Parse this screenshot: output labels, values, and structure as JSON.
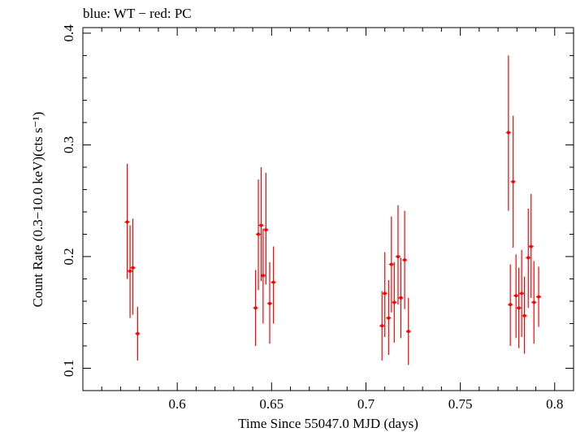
{
  "chart_data": {
    "type": "scatter",
    "title": "blue: WT − red: PC",
    "xlabel": "Time Since 55047.0 MJD (days)",
    "ylabel": "Count Rate (0.3−10.0 keV)(cts s⁻¹)",
    "xlim": [
      0.55,
      0.81
    ],
    "ylim": [
      0.08,
      0.405
    ],
    "xticks": [
      0.6,
      0.65,
      0.7,
      0.75,
      0.8
    ],
    "xtick_labels": [
      "0.6",
      "0.65",
      "0.7",
      "0.75",
      "0.8"
    ],
    "yticks": [
      0.1,
      0.2,
      0.3,
      0.4
    ],
    "ytick_labels": [
      "0.1",
      "0.2",
      "0.3",
      "0.4"
    ],
    "grid": false,
    "series": [
      {
        "color": "#ff0000",
        "marker": "point-with-errorbar",
        "points": [
          {
            "x": 0.5735,
            "y": 0.231,
            "ylo": 0.18,
            "yhi": 0.283
          },
          {
            "x": 0.575,
            "y": 0.187,
            "ylo": 0.145,
            "yhi": 0.228
          },
          {
            "x": 0.5765,
            "y": 0.19,
            "ylo": 0.148,
            "yhi": 0.234
          },
          {
            "x": 0.579,
            "y": 0.131,
            "ylo": 0.107,
            "yhi": 0.155
          },
          {
            "x": 0.6415,
            "y": 0.154,
            "ylo": 0.12,
            "yhi": 0.188
          },
          {
            "x": 0.643,
            "y": 0.22,
            "ylo": 0.17,
            "yhi": 0.269
          },
          {
            "x": 0.6445,
            "y": 0.228,
            "ylo": 0.178,
            "yhi": 0.28
          },
          {
            "x": 0.6455,
            "y": 0.183,
            "ylo": 0.14,
            "yhi": 0.225
          },
          {
            "x": 0.647,
            "y": 0.224,
            "ylo": 0.175,
            "yhi": 0.275
          },
          {
            "x": 0.649,
            "y": 0.158,
            "ylo": 0.122,
            "yhi": 0.195
          },
          {
            "x": 0.651,
            "y": 0.177,
            "ylo": 0.14,
            "yhi": 0.209
          },
          {
            "x": 0.7085,
            "y": 0.138,
            "ylo": 0.107,
            "yhi": 0.169
          },
          {
            "x": 0.71,
            "y": 0.167,
            "ylo": 0.128,
            "yhi": 0.204
          },
          {
            "x": 0.712,
            "y": 0.145,
            "ylo": 0.112,
            "yhi": 0.179
          },
          {
            "x": 0.7135,
            "y": 0.193,
            "ylo": 0.15,
            "yhi": 0.236
          },
          {
            "x": 0.715,
            "y": 0.159,
            "ylo": 0.123,
            "yhi": 0.195
          },
          {
            "x": 0.717,
            "y": 0.2,
            "ylo": 0.157,
            "yhi": 0.246
          },
          {
            "x": 0.7185,
            "y": 0.163,
            "ylo": 0.127,
            "yhi": 0.199
          },
          {
            "x": 0.7205,
            "y": 0.197,
            "ylo": 0.153,
            "yhi": 0.241
          },
          {
            "x": 0.7225,
            "y": 0.133,
            "ylo": 0.103,
            "yhi": 0.163
          },
          {
            "x": 0.7755,
            "y": 0.311,
            "ylo": 0.241,
            "yhi": 0.38
          },
          {
            "x": 0.7765,
            "y": 0.157,
            "ylo": 0.12,
            "yhi": 0.193
          },
          {
            "x": 0.778,
            "y": 0.267,
            "ylo": 0.208,
            "yhi": 0.326
          },
          {
            "x": 0.7795,
            "y": 0.165,
            "ylo": 0.127,
            "yhi": 0.202
          },
          {
            "x": 0.781,
            "y": 0.154,
            "ylo": 0.118,
            "yhi": 0.19
          },
          {
            "x": 0.7825,
            "y": 0.167,
            "ylo": 0.128,
            "yhi": 0.206
          },
          {
            "x": 0.784,
            "y": 0.147,
            "ylo": 0.113,
            "yhi": 0.182
          },
          {
            "x": 0.786,
            "y": 0.199,
            "ylo": 0.154,
            "yhi": 0.243
          },
          {
            "x": 0.7875,
            "y": 0.209,
            "ylo": 0.163,
            "yhi": 0.256
          },
          {
            "x": 0.789,
            "y": 0.159,
            "ylo": 0.122,
            "yhi": 0.196
          },
          {
            "x": 0.7915,
            "y": 0.164,
            "ylo": 0.137,
            "yhi": 0.191
          }
        ]
      }
    ]
  }
}
